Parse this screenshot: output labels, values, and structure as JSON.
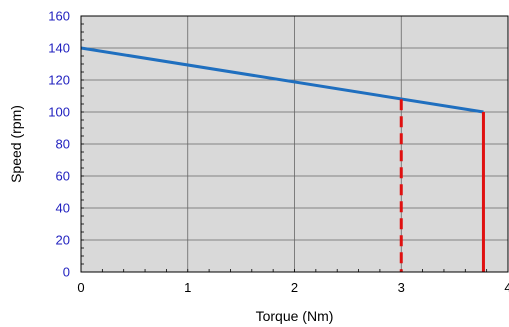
{
  "chart_data": {
    "type": "line",
    "xlabel": "Torque (Nm)",
    "ylabel": "Speed (rpm)",
    "xlim": [
      0,
      4
    ],
    "ylim": [
      0,
      160
    ],
    "x_ticks": [
      0,
      1,
      2,
      3,
      4
    ],
    "y_ticks": [
      0,
      20,
      40,
      60,
      80,
      100,
      120,
      140,
      160
    ],
    "grid": true,
    "plot_background": "#d9d9d9",
    "series": [
      {
        "color": "#1f6fbf",
        "points": [
          {
            "x": 0,
            "y": 140
          },
          {
            "x": 3.77,
            "y": 100
          }
        ]
      }
    ],
    "vertical_lines": [
      {
        "x": 3.0,
        "y_top": 108,
        "style": "dashed",
        "color": "#e01010"
      },
      {
        "x": 3.77,
        "y_top": 100,
        "style": "solid",
        "color": "#e01010"
      }
    ]
  }
}
